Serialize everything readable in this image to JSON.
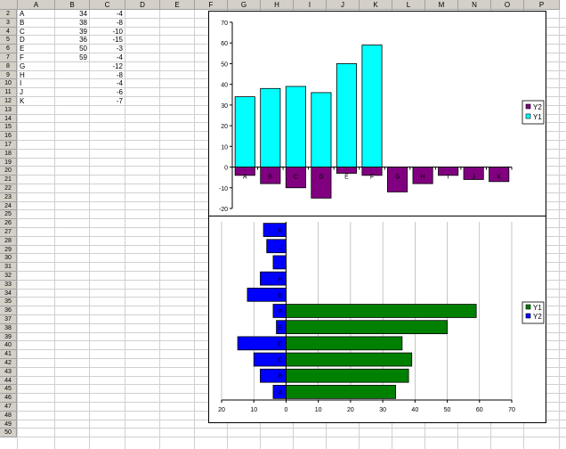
{
  "columns": [
    "A",
    "B",
    "C",
    "D",
    "E",
    "F",
    "G",
    "H",
    "I",
    "J",
    "K",
    "L",
    "M",
    "N",
    "O",
    "P"
  ],
  "rows": [
    "2",
    "3",
    "4",
    "5",
    "6",
    "7",
    "8",
    "9",
    "10",
    "11",
    "12",
    "13",
    "14",
    "15",
    "16",
    "17",
    "18",
    "19",
    "20",
    "21",
    "22",
    "23",
    "24",
    "25",
    "26",
    "27",
    "28",
    "29",
    "30",
    "31",
    "32",
    "33",
    "34",
    "35",
    "36",
    "37",
    "38",
    "39",
    "40",
    "41",
    "42",
    "43",
    "44",
    "45",
    "46",
    "47",
    "48",
    "49",
    "50"
  ],
  "cells": [
    {
      "row": "2",
      "a": "A",
      "b": "34",
      "c": "-4"
    },
    {
      "row": "3",
      "a": "B",
      "b": "38",
      "c": "-8"
    },
    {
      "row": "4",
      "a": "C",
      "b": "39",
      "c": "-10"
    },
    {
      "row": "5",
      "a": "D",
      "b": "36",
      "c": "-15"
    },
    {
      "row": "6",
      "a": "E",
      "b": "50",
      "c": "-3"
    },
    {
      "row": "7",
      "a": "F",
      "b": "59",
      "c": "-4"
    },
    {
      "row": "8",
      "a": "G",
      "b": "",
      "c": "-12"
    },
    {
      "row": "9",
      "a": "H",
      "b": "",
      "c": "-8"
    },
    {
      "row": "10",
      "a": "I",
      "b": "",
      "c": "-4"
    },
    {
      "row": "11",
      "a": "J",
      "b": "",
      "c": "-6"
    },
    {
      "row": "12",
      "a": "K",
      "b": "",
      "c": "-7"
    }
  ],
  "colors": {
    "header_bg": "#d4d0c8",
    "y1_top": "#00ffff",
    "y2_top": "#800080",
    "y1_bottom": "#008000",
    "y2_bottom": "#0000ff"
  },
  "chart_data": [
    {
      "type": "bar",
      "categories": [
        "A",
        "B",
        "C",
        "D",
        "E",
        "F",
        "G",
        "H",
        "I",
        "J",
        "K"
      ],
      "series": [
        {
          "name": "Y1",
          "values": [
            34,
            38,
            39,
            36,
            50,
            59,
            0,
            0,
            0,
            0,
            0
          ]
        },
        {
          "name": "Y2",
          "values": [
            -4,
            -8,
            -10,
            -15,
            -3,
            -4,
            -12,
            -8,
            -4,
            -6,
            -7
          ]
        }
      ],
      "ylim": [
        -20,
        70
      ],
      "yticks": [
        "70",
        "60",
        "50",
        "40",
        "30",
        "20",
        "10",
        "0",
        "-10",
        "-20"
      ],
      "legend": [
        "Y2",
        "Y1"
      ],
      "legend_position": "right",
      "grid": false
    },
    {
      "type": "bar",
      "orientation": "horizontal",
      "categories": [
        "A",
        "B",
        "C",
        "D",
        "E",
        "F",
        "G",
        "H",
        "I",
        "J",
        "K"
      ],
      "series": [
        {
          "name": "Y1",
          "values": [
            34,
            38,
            39,
            36,
            50,
            59,
            0,
            0,
            0,
            0,
            0
          ]
        },
        {
          "name": "Y2",
          "values": [
            -4,
            -8,
            -10,
            -15,
            -3,
            -4,
            -12,
            -8,
            -4,
            -6,
            -7
          ]
        }
      ],
      "xlim": [
        -20,
        70
      ],
      "xticks": [
        "20",
        "10",
        "0",
        "10",
        "20",
        "30",
        "40",
        "50",
        "60",
        "70"
      ],
      "legend": [
        "Y1",
        "Y2"
      ],
      "legend_position": "right",
      "grid": true
    }
  ]
}
